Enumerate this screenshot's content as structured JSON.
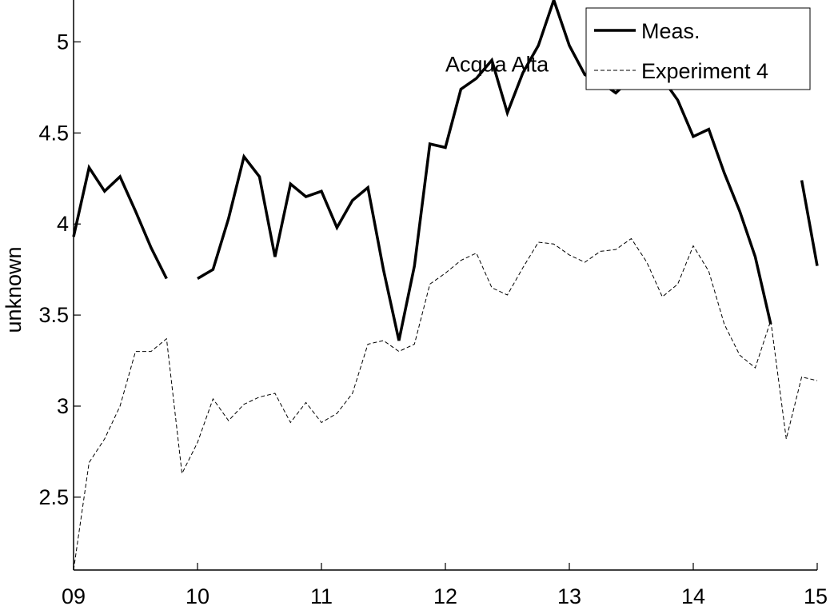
{
  "chart_data": {
    "type": "line",
    "title": "",
    "xlabel": "",
    "ylabel": "unknown",
    "xlim": [
      9,
      15
    ],
    "ylim": [
      2.1,
      5.23
    ],
    "x_ticks": [
      9,
      10,
      11,
      12,
      13,
      14,
      15
    ],
    "x_tick_labels": [
      "09",
      "10",
      "11",
      "12",
      "13",
      "14",
      "15"
    ],
    "y_ticks": [
      2.5,
      3,
      3.5,
      4,
      4.5,
      5
    ],
    "y_tick_labels": [
      "2.5",
      "3",
      "3.5",
      "4",
      "4.5",
      "5"
    ],
    "grid": false,
    "legend_position": "top-right",
    "annotations": [
      {
        "text": "Acqua Alta",
        "x": 12.0,
        "y": 4.88
      }
    ],
    "series": [
      {
        "name": "Meas.",
        "style": "solid-thick",
        "color": "#000000",
        "x": [
          9.0,
          9.125,
          9.25,
          9.375,
          9.5,
          9.625,
          9.75,
          null,
          10.0,
          10.125,
          10.25,
          10.375,
          10.5,
          10.625,
          10.75,
          10.875,
          11.0,
          11.125,
          11.25,
          11.375,
          11.5,
          11.625,
          11.75,
          11.875,
          12.0,
          12.125,
          12.25,
          12.375,
          12.5,
          12.625,
          12.75,
          12.875,
          13.0,
          13.125,
          13.25,
          13.375,
          13.5,
          13.625,
          13.75,
          13.875,
          14.0,
          14.125,
          14.25,
          14.375,
          14.5,
          14.625,
          null,
          14.875,
          15.0
        ],
        "y": [
          3.93,
          4.31,
          4.18,
          4.26,
          4.07,
          3.87,
          3.7,
          null,
          3.7,
          3.75,
          4.03,
          4.37,
          4.26,
          3.82,
          4.22,
          4.15,
          4.18,
          3.98,
          4.13,
          4.2,
          3.75,
          3.36,
          3.77,
          4.44,
          4.42,
          4.74,
          4.8,
          4.9,
          4.61,
          4.83,
          4.98,
          5.23,
          4.98,
          4.82,
          4.78,
          4.72,
          4.8,
          4.85,
          4.8,
          4.68,
          4.48,
          4.52,
          4.28,
          4.07,
          3.82,
          3.45,
          null,
          4.24,
          3.77
        ]
      },
      {
        "name": "Experiment 4",
        "style": "dashed-thin",
        "color": "#000000",
        "x": [
          9.0,
          9.125,
          9.25,
          9.375,
          9.5,
          9.625,
          9.75,
          9.875,
          10.0,
          10.125,
          10.25,
          10.375,
          10.5,
          10.625,
          10.75,
          10.875,
          11.0,
          11.125,
          11.25,
          11.375,
          11.5,
          11.625,
          11.75,
          11.875,
          12.0,
          12.125,
          12.25,
          12.375,
          12.5,
          12.625,
          12.75,
          12.875,
          13.0,
          13.125,
          13.25,
          13.375,
          13.5,
          13.625,
          13.75,
          13.875,
          14.0,
          14.125,
          14.25,
          14.375,
          14.5,
          14.625,
          14.75,
          14.875,
          15.0
        ],
        "y": [
          2.1,
          2.69,
          2.82,
          3.0,
          3.3,
          3.3,
          3.37,
          2.63,
          2.8,
          3.04,
          2.92,
          3.01,
          3.05,
          3.07,
          2.91,
          3.02,
          2.91,
          2.96,
          3.07,
          3.34,
          3.36,
          3.3,
          3.34,
          3.67,
          3.73,
          3.8,
          3.84,
          3.65,
          3.61,
          3.76,
          3.9,
          3.89,
          3.83,
          3.79,
          3.85,
          3.86,
          3.92,
          3.79,
          3.6,
          3.67,
          3.88,
          3.74,
          3.45,
          3.28,
          3.21,
          3.47,
          2.82,
          3.16,
          3.14
        ]
      }
    ]
  }
}
